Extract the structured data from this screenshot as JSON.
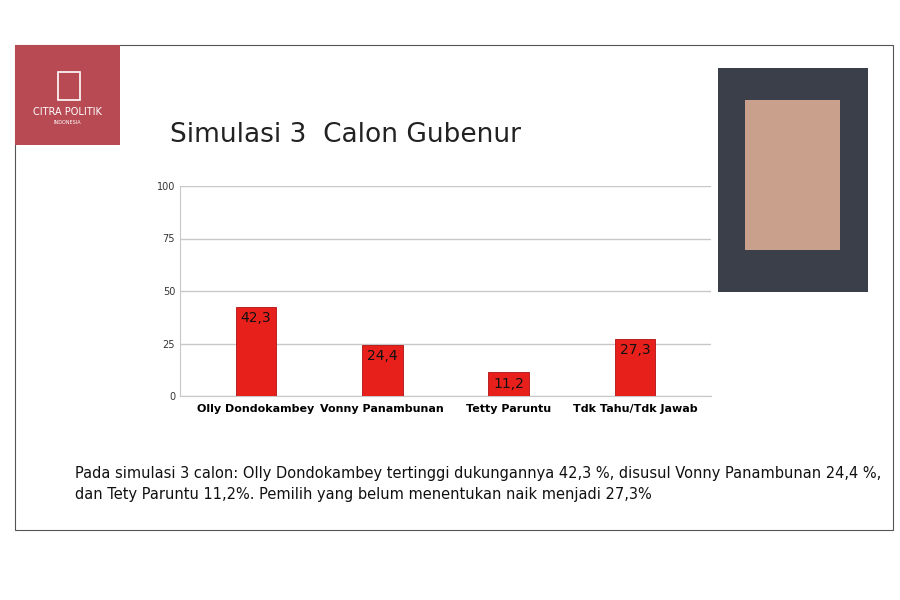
{
  "chart_data": {
    "type": "bar",
    "title": "Simulasi 3  Calon Gubenur",
    "categories": [
      "Olly Dondokambey",
      "Vonny Panambunan",
      "Tetty Paruntu",
      "Tdk Tahu/Tdk Jawab"
    ],
    "values": [
      42.3,
      24.4,
      11.2,
      27.3
    ],
    "value_labels": [
      "42,3",
      "24,4",
      "11,2",
      "27,3"
    ],
    "data_labels": true,
    "color": "#e8201c",
    "ylim": [
      0,
      100
    ],
    "yticks": [
      0,
      25,
      50,
      75,
      100
    ],
    "grid": true,
    "logo_text": [
      "CITRA POLITIK",
      "INDONESIA"
    ],
    "caption": "Pada simulasi 3 calon: Olly Dondokambey tertinggi dukungannya 42,3 %, disusul Vonny Panambunan 24,4 %, dan Tety Paruntu 11,2%. Pemilih yang belum menentukan naik menjadi 27,3%"
  }
}
